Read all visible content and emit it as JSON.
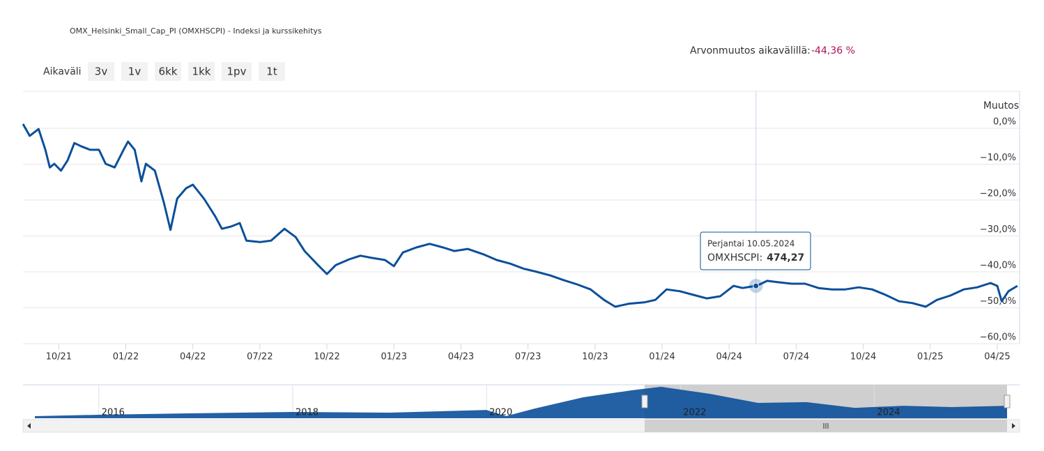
{
  "chart_data": {
    "type": "line",
    "title": "OMX_Helsinki_Small_Cap_PI (OMXHSCPI) - Indeksi ja kurssikehitys",
    "change_label": "Arvonmuutos aikavälillä:",
    "change_value": "-44,36 %",
    "range_label": "Aikaväli",
    "range_buttons": [
      "3v",
      "1v",
      "6kk",
      "1kk",
      "1pv",
      "1t"
    ],
    "y_axis_title": "Muutos",
    "xlim": [
      -1.6,
      43.0
    ],
    "xticks": [
      {
        "value": 0,
        "label": "10/21"
      },
      {
        "value": 3,
        "label": "01/22"
      },
      {
        "value": 6,
        "label": "04/22"
      },
      {
        "value": 9,
        "label": "07/22"
      },
      {
        "value": 12,
        "label": "10/22"
      },
      {
        "value": 15,
        "label": "01/23"
      },
      {
        "value": 18,
        "label": "04/23"
      },
      {
        "value": 21,
        "label": "07/23"
      },
      {
        "value": 24,
        "label": "10/23"
      },
      {
        "value": 27,
        "label": "01/24"
      },
      {
        "value": 30,
        "label": "04/24"
      },
      {
        "value": 33,
        "label": "07/24"
      },
      {
        "value": 36,
        "label": "10/24"
      },
      {
        "value": 39,
        "label": "01/25"
      },
      {
        "value": 42,
        "label": "04/25"
      }
    ],
    "ylim": [
      -60,
      10.3
    ],
    "yticks": [
      {
        "value": 0,
        "label": "0,0%"
      },
      {
        "value": -10,
        "label": "−10,0%"
      },
      {
        "value": -20,
        "label": "−20,0%"
      },
      {
        "value": -30,
        "label": "−30,0%"
      },
      {
        "value": -40,
        "label": "−40,0%"
      },
      {
        "value": -50,
        "label": "−50,0%"
      },
      {
        "value": -60,
        "label": "−60,0%"
      }
    ],
    "grid": true,
    "series": [
      {
        "name": "OMXHSCPI",
        "color": "#0b4f9a",
        "x": [
          -1.6,
          -1.3,
          -0.9,
          -0.6,
          -0.4,
          -0.2,
          0.1,
          0.4,
          0.7,
          1.0,
          1.4,
          1.8,
          2.1,
          2.5,
          2.9,
          3.1,
          3.4,
          3.7,
          3.9,
          4.3,
          4.7,
          5.0,
          5.3,
          5.7,
          6.0,
          6.5,
          7.0,
          7.3,
          7.7,
          8.1,
          8.4,
          9.0,
          9.5,
          10.1,
          10.6,
          11.0,
          11.6,
          12.0,
          12.4,
          13.0,
          13.5,
          14.0,
          14.6,
          15.0,
          15.4,
          16.0,
          16.6,
          17.2,
          17.7,
          18.3,
          19.0,
          19.6,
          20.2,
          20.8,
          21.4,
          22.0,
          22.6,
          23.2,
          23.8,
          24.4,
          24.9,
          25.5,
          26.2,
          26.7,
          27.2,
          27.8,
          28.4,
          29.0,
          29.6,
          30.2,
          30.6,
          31.0,
          31.3,
          31.7,
          32.2,
          32.8,
          33.4,
          34.0,
          34.6,
          35.2,
          35.8,
          36.4,
          37.0,
          37.6,
          38.2,
          38.8,
          39.3,
          39.9,
          40.5,
          41.1,
          41.7,
          42.0,
          42.2,
          42.5,
          42.9
        ],
        "values": [
          1.2,
          -2.1,
          -0.2,
          -6,
          -10.9,
          -9.9,
          -11.8,
          -8.9,
          -4.1,
          -5,
          -6,
          -6,
          -9.9,
          -10.9,
          -6,
          -3.7,
          -6,
          -14.8,
          -9.9,
          -11.8,
          -20.6,
          -28.3,
          -19.6,
          -16.7,
          -15.7,
          -19.6,
          -24.5,
          -28,
          -27.4,
          -26.4,
          -31.3,
          -31.7,
          -31.3,
          -28,
          -30.3,
          -34.2,
          -38.1,
          -40.6,
          -38.1,
          -36.5,
          -35.5,
          -36.1,
          -36.7,
          -38.4,
          -34.6,
          -33.2,
          -32.2,
          -33.2,
          -34.2,
          -33.6,
          -35.1,
          -36.7,
          -37.7,
          -39.1,
          -40,
          -41,
          -42.3,
          -43.5,
          -44.9,
          -47.8,
          -49.7,
          -48.9,
          -48.5,
          -47.8,
          -44.9,
          -45.4,
          -46.4,
          -47.4,
          -46.8,
          -43.9,
          -44.5,
          -44.1,
          -43.7,
          -42.5,
          -42.9,
          -43.3,
          -43.3,
          -44.5,
          -44.9,
          -44.9,
          -44.3,
          -44.9,
          -46.4,
          -48.2,
          -48.7,
          -49.7,
          -47.8,
          -46.6,
          -44.9,
          -44.3,
          -43.1,
          -43.9,
          -48.2,
          -45.4,
          -43.9
        ]
      }
    ],
    "highlight": {
      "x": 31.2,
      "y": -43.9,
      "date": "Perjantai 10.05.2024",
      "series_label": "OMXHSCPI:",
      "value_label": "474,27"
    },
    "navigator": {
      "color": "#0b4f9a",
      "xlim": [
        2015.34,
        2025.37
      ],
      "ylim": [
        250,
        880
      ],
      "xticks": [
        2016,
        2018,
        2020,
        2022,
        2024
      ],
      "x": [
        2015.34,
        2016,
        2017,
        2018,
        2019,
        2020,
        2020.2,
        2020.5,
        2021,
        2021.5,
        2021.8,
        2022.3,
        2022.8,
        2023.3,
        2023.8,
        2024.3,
        2024.8,
        2025.37
      ],
      "values": [
        290,
        317,
        345,
        370,
        357,
        410,
        290,
        438,
        653,
        787,
        854,
        720,
        545,
        560,
        450,
        490,
        465,
        490
      ]
    }
  }
}
